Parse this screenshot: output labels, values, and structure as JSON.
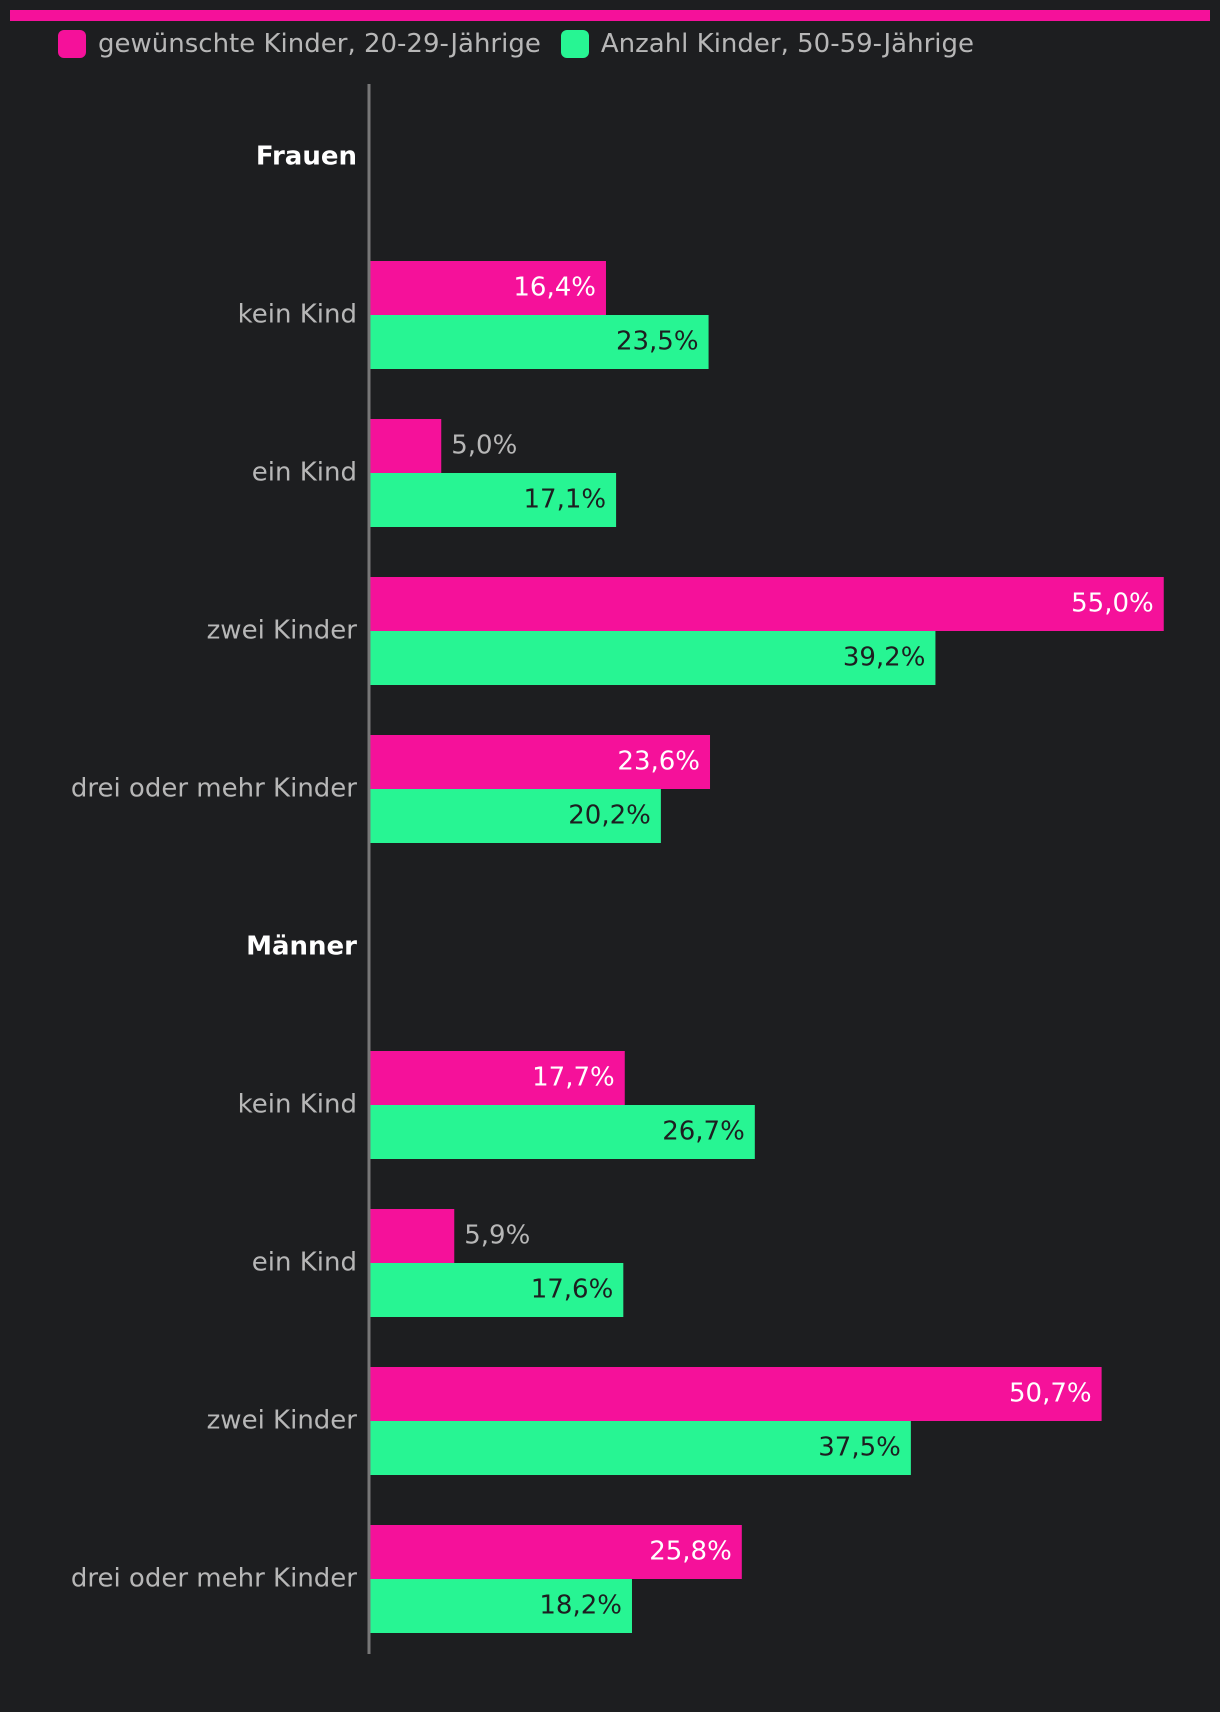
{
  "colors": {
    "accent": "#f5119a",
    "series_a": "#f5119a",
    "series_b": "#27f593",
    "background": "#1d1e20",
    "category_label": "#b7b7b7",
    "group_label": "#ffffff",
    "axis": "#777777"
  },
  "legend": [
    {
      "label": "gewünschte Kinder, 20-29-Jährige"
    },
    {
      "label": "Anzahl Kinder, 50-59-Jährige"
    }
  ],
  "chart_data": {
    "type": "bar",
    "orientation": "horizontal",
    "x_unit": "%",
    "xlim": [
      0,
      60
    ],
    "grid": false,
    "legend_position": "top-left",
    "series": [
      {
        "name": "gewünschte Kinder, 20-29-Jährige"
      },
      {
        "name": "Anzahl Kinder, 50-59-Jährige"
      }
    ],
    "groups": [
      {
        "label": "Frauen",
        "categories": [
          {
            "label": "kein Kind",
            "values": [
              16.4,
              23.5
            ],
            "value_labels": [
              "16,4%",
              "23,5%"
            ]
          },
          {
            "label": "ein Kind",
            "values": [
              5.0,
              17.1
            ],
            "value_labels": [
              "5,0%",
              "17,1%"
            ]
          },
          {
            "label": "zwei Kinder",
            "values": [
              55.0,
              39.2
            ],
            "value_labels": [
              "55,0%",
              "39,2%"
            ]
          },
          {
            "label": "drei oder mehr Kinder",
            "values": [
              23.6,
              20.2
            ],
            "value_labels": [
              "23,6%",
              "20,2%"
            ]
          }
        ]
      },
      {
        "label": "Männer",
        "categories": [
          {
            "label": "kein Kind",
            "values": [
              17.7,
              26.7
            ],
            "value_labels": [
              "17,7%",
              "26,7%"
            ]
          },
          {
            "label": "ein Kind",
            "values": [
              5.9,
              17.6
            ],
            "value_labels": [
              "5,9%",
              "17,6%"
            ]
          },
          {
            "label": "zwei Kinder",
            "values": [
              50.7,
              37.5
            ],
            "value_labels": [
              "50,7%",
              "37,5%"
            ]
          },
          {
            "label": "drei oder mehr Kinder",
            "values": [
              25.8,
              18.2
            ],
            "value_labels": [
              "25,8%",
              "18,2%"
            ]
          }
        ]
      }
    ]
  }
}
